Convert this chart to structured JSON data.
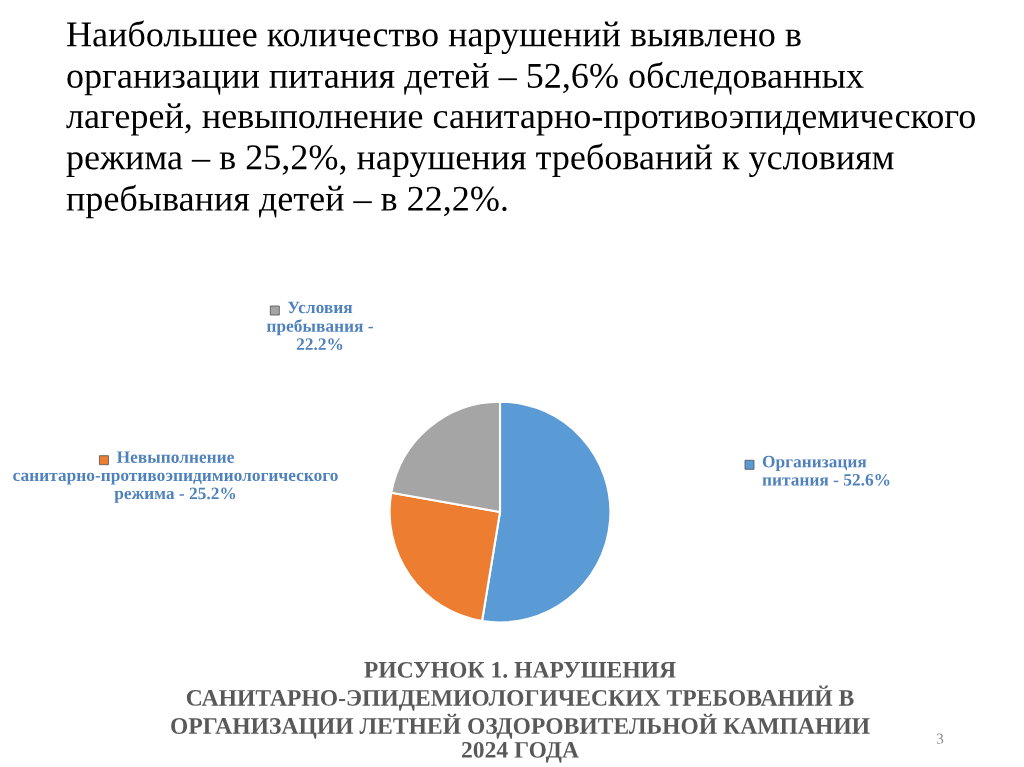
{
  "chart_data": {
    "type": "pie",
    "title": "РИСУНОК 1. НАРУШЕНИЯ САНИТАРНО-ЭПИДЕМИОЛОГИЧЕСКИХ ТРЕБОВАНИЙ В ОРГАНИЗАЦИИ ЛЕТНЕЙ ОЗДОРОВИТЕЛЬНОЙ КАМПАНИИ 2024 ГОДА",
    "categories": [
      "Организация питания -",
      "Невыполнение санитарно-противоэпидимиологического режима -",
      "Условия пребывания -"
    ],
    "values": [
      52.6,
      25.2,
      22.2
    ],
    "colors": [
      "#5b9bd5",
      "#ed7d31",
      "#a5a5a5"
    ],
    "value_labels": [
      "52.6%",
      "25.2%",
      "22.2%"
    ],
    "legend": "left",
    "annotations": [
      "Наибольшее количество нарушений выявлено в организации питания детей – 52,6% обследованных лагерей, невыполнение санитарно-противоэпидемического режима – в 25,2%, нарушения требований к условиям пребывания детей – в 22,2%.",
      "3"
    ]
  }
}
